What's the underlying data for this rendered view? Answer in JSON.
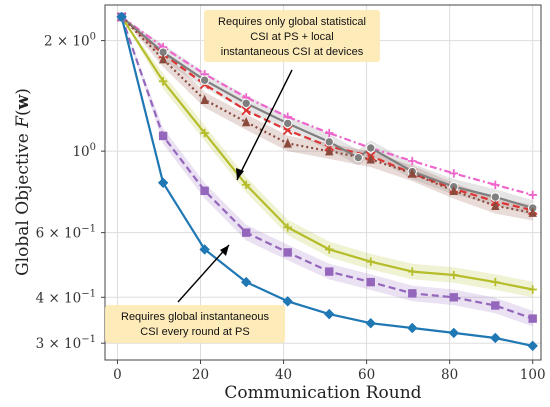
{
  "chart_data": {
    "type": "line",
    "title": "",
    "xlabel": "Communication Round",
    "ylabel": "Global Objective F(w)",
    "ylabel_parts": {
      "prefix": "Global Objective ",
      "func": "F",
      "open": "(",
      "var": "w",
      "close": ")"
    },
    "xlim": [
      -3,
      102
    ],
    "ylim": [
      0.27,
      2.5
    ],
    "yscale": "log",
    "grid": true,
    "legend": "none",
    "x_ticks": [
      0,
      20,
      40,
      60,
      80,
      100
    ],
    "y_ticks": [
      {
        "value": 2.0,
        "base": "2 × 10",
        "exp": "0"
      },
      {
        "value": 1.0,
        "base": "10",
        "exp": "0"
      },
      {
        "value": 0.6,
        "base": "6 × 10",
        "exp": "−1"
      },
      {
        "value": 0.4,
        "base": "4 × 10",
        "exp": "−1"
      },
      {
        "value": 0.3,
        "base": "3 × 10",
        "exp": "−1"
      }
    ],
    "annotations": [
      {
        "lines": [
          "Requires only global statistical",
          "CSI at PS + local",
          "instantaneous CSI at devices"
        ]
      },
      {
        "lines": [
          "Requires global instantaneous",
          "CSI every round at PS"
        ]
      }
    ],
    "series": [
      {
        "color": "#ee66cc",
        "style": "dashdot",
        "marker": "plus",
        "band": false,
        "x": [
          1,
          11,
          21,
          31,
          41,
          51,
          61,
          71,
          81,
          91,
          100
        ],
        "y": [
          2.32,
          1.92,
          1.62,
          1.4,
          1.24,
          1.12,
          1.02,
          0.94,
          0.87,
          0.81,
          0.76
        ]
      },
      {
        "color": "#dd3333",
        "style": "dashed",
        "marker": "x",
        "band": false,
        "x": [
          1,
          11,
          21,
          31,
          41,
          51,
          61,
          71,
          81,
          91,
          100
        ],
        "y": [
          2.32,
          1.84,
          1.52,
          1.29,
          1.14,
          1.03,
          0.97,
          0.87,
          0.79,
          0.73,
          0.69
        ]
      },
      {
        "color": "#7f7f7f",
        "style": "solid",
        "marker": "circle",
        "band": true,
        "x": [
          1,
          11,
          21,
          31,
          41,
          51,
          58,
          61,
          71,
          81,
          91,
          100
        ],
        "y": [
          2.32,
          1.86,
          1.56,
          1.35,
          1.19,
          1.06,
          0.96,
          1.02,
          0.88,
          0.8,
          0.75,
          0.7
        ]
      },
      {
        "color": "#8c4a3c",
        "style": "dotted",
        "marker": "triangle",
        "band": true,
        "x": [
          1,
          11,
          21,
          31,
          41,
          51,
          61,
          71,
          81,
          91,
          100
        ],
        "y": [
          2.32,
          1.78,
          1.38,
          1.2,
          1.05,
          1.0,
          0.95,
          0.87,
          0.78,
          0.71,
          0.68
        ]
      },
      {
        "color": "#b5bd2a",
        "style": "solid",
        "marker": "plus",
        "band": true,
        "x": [
          1,
          11,
          21,
          31,
          41,
          51,
          61,
          71,
          81,
          91,
          100
        ],
        "y": [
          2.32,
          1.55,
          1.12,
          0.81,
          0.62,
          0.54,
          0.5,
          0.47,
          0.46,
          0.44,
          0.42
        ]
      },
      {
        "color": "#9467bd",
        "style": "dashed",
        "marker": "square",
        "band": true,
        "x": [
          1,
          11,
          21,
          31,
          41,
          51,
          61,
          71,
          81,
          91,
          100
        ],
        "y": [
          2.32,
          1.1,
          0.78,
          0.6,
          0.53,
          0.47,
          0.44,
          0.41,
          0.4,
          0.38,
          0.35
        ]
      },
      {
        "color": "#1f77b4",
        "style": "solid",
        "marker": "diamond",
        "band": false,
        "x": [
          1,
          11,
          21,
          31,
          41,
          51,
          61,
          71,
          81,
          91,
          100
        ],
        "y": [
          2.32,
          0.82,
          0.54,
          0.44,
          0.39,
          0.36,
          0.34,
          0.33,
          0.32,
          0.31,
          0.295
        ]
      }
    ]
  }
}
